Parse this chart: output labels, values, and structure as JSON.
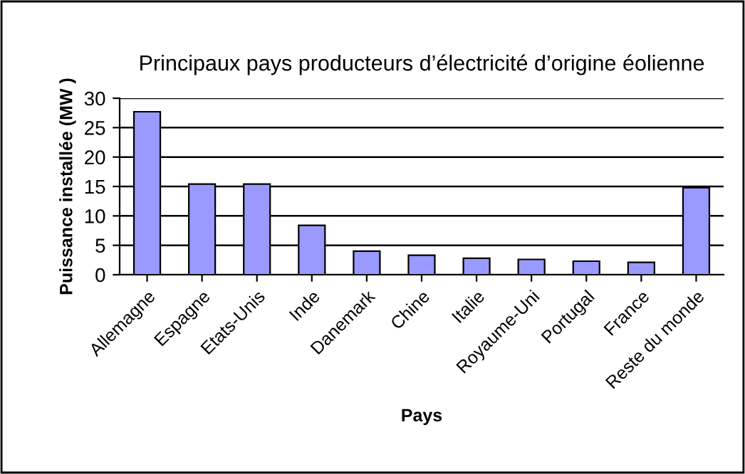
{
  "chart_data": {
    "type": "bar",
    "title": "Principaux pays producteurs d’électricité d’origine éolienne",
    "xlabel": "Pays",
    "ylabel": "Puissance installée (MW )",
    "categories": [
      "Allemagne",
      "Espagne",
      "Etats-Unis",
      "Inde",
      "Danemark",
      "Chine",
      "Italie",
      "Royaume-Uni",
      "Portugal",
      "France",
      "Reste du monde"
    ],
    "values": [
      27.7,
      15.4,
      15.4,
      8.4,
      4.0,
      3.3,
      2.8,
      2.6,
      2.3,
      2.1,
      14.8
    ],
    "color": "#9999ff",
    "ylim": [
      0,
      30
    ],
    "yticks": [
      0,
      5,
      10,
      15,
      20,
      25,
      30
    ],
    "grid": "y",
    "legend": false
  }
}
